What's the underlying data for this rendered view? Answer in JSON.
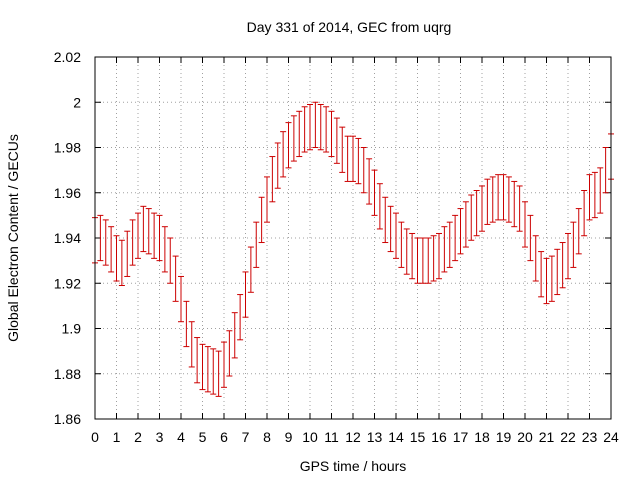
{
  "chart_data": {
    "type": "line",
    "title": "Day 331 of 2014, GEC from uqrg",
    "xlabel": "GPS time / hours",
    "ylabel": "Global Electron Content / GECUs",
    "xlim": [
      0,
      24
    ],
    "ylim": [
      1.86,
      2.02
    ],
    "xticks": [
      0,
      1,
      2,
      3,
      4,
      5,
      6,
      7,
      8,
      9,
      10,
      11,
      12,
      13,
      14,
      15,
      16,
      17,
      18,
      19,
      20,
      21,
      22,
      23,
      24
    ],
    "yticks": [
      1.86,
      1.88,
      1.9,
      1.92,
      1.94,
      1.96,
      1.98,
      2.0,
      2.02
    ],
    "ytick_labels": [
      "1.86",
      "1.88",
      "1.9",
      "1.92",
      "1.94",
      "1.96",
      "1.98",
      "2",
      "2.02"
    ],
    "grid": true,
    "series": [
      {
        "name": "GEC",
        "color": "#cc0000",
        "x": [
          0,
          0.25,
          0.5,
          0.75,
          1,
          1.25,
          1.5,
          1.75,
          2,
          2.25,
          2.5,
          2.75,
          3,
          3.25,
          3.5,
          3.75,
          4,
          4.25,
          4.5,
          4.75,
          5,
          5.25,
          5.5,
          5.75,
          6,
          6.25,
          6.5,
          6.75,
          7,
          7.25,
          7.5,
          7.75,
          8,
          8.25,
          8.5,
          8.75,
          9,
          9.25,
          9.5,
          9.75,
          10,
          10.25,
          10.5,
          10.75,
          11,
          11.25,
          11.5,
          11.75,
          12,
          12.25,
          12.5,
          12.75,
          13,
          13.25,
          13.5,
          13.75,
          14,
          14.25,
          14.5,
          14.75,
          15,
          15.25,
          15.5,
          15.75,
          16,
          16.25,
          16.5,
          16.75,
          17,
          17.25,
          17.5,
          17.75,
          18,
          18.25,
          18.5,
          18.75,
          19,
          19.25,
          19.5,
          19.75,
          20,
          20.25,
          20.5,
          20.75,
          21,
          21.25,
          21.5,
          21.75,
          22,
          22.25,
          22.5,
          22.75,
          23,
          23.25,
          23.5,
          23.75,
          24
        ],
        "y": [
          1.939,
          1.94,
          1.938,
          1.935,
          1.931,
          1.929,
          1.933,
          1.938,
          1.941,
          1.944,
          1.943,
          1.941,
          1.94,
          1.935,
          1.93,
          1.922,
          1.913,
          1.902,
          1.893,
          1.886,
          1.883,
          1.882,
          1.881,
          1.88,
          1.884,
          1.889,
          1.897,
          1.905,
          1.915,
          1.926,
          1.937,
          1.948,
          1.957,
          1.966,
          1.972,
          1.977,
          1.981,
          1.984,
          1.986,
          1.988,
          1.989,
          1.99,
          1.989,
          1.988,
          1.986,
          1.983,
          1.979,
          1.975,
          1.975,
          1.974,
          1.97,
          1.965,
          1.96,
          1.954,
          1.948,
          1.944,
          1.941,
          1.937,
          1.934,
          1.932,
          1.93,
          1.93,
          1.93,
          1.931,
          1.932,
          1.935,
          1.937,
          1.94,
          1.943,
          1.946,
          1.949,
          1.951,
          1.953,
          1.956,
          1.957,
          1.958,
          1.958,
          1.957,
          1.955,
          1.953,
          1.946,
          1.94,
          1.931,
          1.924,
          1.921,
          1.922,
          1.925,
          1.928,
          1.932,
          1.937,
          1.943,
          1.951,
          1.958,
          1.959,
          1.961,
          1.97,
          1.976
        ],
        "err": 0.01
      }
    ]
  }
}
